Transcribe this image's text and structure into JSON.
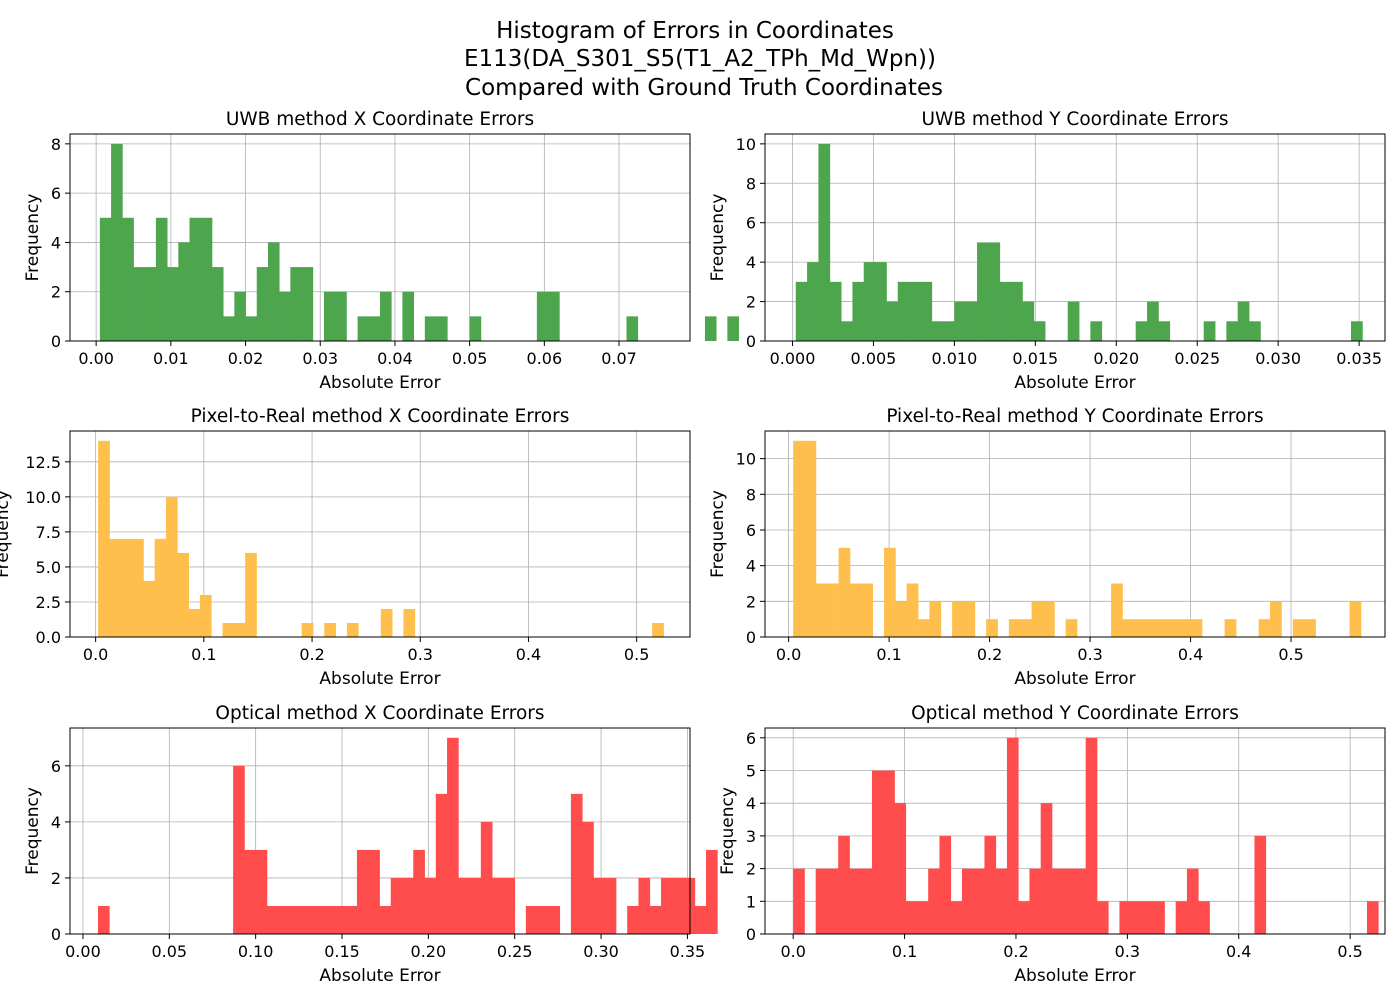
{
  "figure": {
    "title_lines": [
      "Histogram of Errors in Coordinates",
      "E113(DA_S301_S5(T1_A2_TPh_Md_Wpn))",
      "Compared with Ground Truth Coordinates"
    ]
  },
  "colors": {
    "uwb": "#4da64d",
    "pixel": "#ffbf4d",
    "optical": "#ff4d4d"
  },
  "chart_data": [
    {
      "type": "bar",
      "title": "UWB method X Coordinate Errors",
      "xlabel": "Absolute Error",
      "ylabel": "Frequency",
      "color": "#4da64d",
      "xlim": [
        -0.0035,
        0.0795
      ],
      "ylim": [
        0,
        8.4
      ],
      "xticks": [
        0.0,
        0.01,
        0.02,
        0.03,
        0.04,
        0.05,
        0.06,
        0.07
      ],
      "xtick_labels": [
        "0.00",
        "0.01",
        "0.02",
        "0.03",
        "0.04",
        "0.05",
        "0.06",
        "0.07"
      ],
      "yticks": [
        0,
        2,
        4,
        6,
        8
      ],
      "ytick_labels": [
        "0",
        "2",
        "4",
        "6",
        "8"
      ],
      "bin_start": 0.0005,
      "bin_width": 0.0015,
      "values": [
        5,
        8,
        5,
        3,
        3,
        5,
        3,
        4,
        5,
        5,
        3,
        1,
        2,
        1,
        3,
        4,
        2,
        3,
        3,
        0,
        2,
        2,
        0,
        1,
        1,
        2,
        0,
        2,
        0,
        1,
        1,
        0,
        0,
        1,
        0,
        0,
        0,
        0,
        0,
        2,
        2,
        0,
        0,
        0,
        0,
        0,
        0,
        1,
        0,
        0,
        0,
        0,
        0,
        0,
        1,
        0,
        1
      ]
    },
    {
      "type": "bar",
      "title": "UWB method Y Coordinate Errors",
      "xlabel": "Absolute Error",
      "ylabel": "Frequency",
      "color": "#4da64d",
      "xlim": [
        -0.0017,
        0.0366
      ],
      "ylim": [
        0,
        10.5
      ],
      "xticks": [
        0.0,
        0.005,
        0.01,
        0.015,
        0.02,
        0.025,
        0.03,
        0.035
      ],
      "xtick_labels": [
        "0.000",
        "0.005",
        "0.010",
        "0.015",
        "0.020",
        "0.025",
        "0.030",
        "0.035"
      ],
      "yticks": [
        0,
        2,
        4,
        6,
        8,
        10
      ],
      "ytick_labels": [
        "0",
        "2",
        "4",
        "6",
        "8",
        "10"
      ],
      "bin_start": 0.0002,
      "bin_width": 0.0007,
      "values": [
        3,
        4,
        10,
        3,
        1,
        3,
        4,
        4,
        2,
        3,
        3,
        3,
        1,
        1,
        2,
        2,
        5,
        5,
        3,
        3,
        2,
        1,
        0,
        0,
        2,
        0,
        1,
        0,
        0,
        0,
        1,
        2,
        1,
        0,
        0,
        0,
        1,
        0,
        1,
        2,
        1,
        0,
        0,
        0,
        0,
        0,
        0,
        0,
        0,
        1
      ]
    },
    {
      "type": "bar",
      "title": "Pixel-to-Real method X Coordinate Errors",
      "xlabel": "Absolute Error",
      "ylabel": "Frequency",
      "color": "#ffbf4d",
      "xlim": [
        -0.0237,
        0.5493
      ],
      "ylim": [
        0,
        14.7
      ],
      "xticks": [
        0.0,
        0.1,
        0.2,
        0.3,
        0.4,
        0.5
      ],
      "xtick_labels": [
        "0.0",
        "0.1",
        "0.2",
        "0.3",
        "0.4",
        "0.5"
      ],
      "yticks": [
        0,
        2.5,
        5.0,
        7.5,
        10.0,
        12.5
      ],
      "ytick_labels": [
        "0.0",
        "2.5",
        "5.0",
        "7.5",
        "10.0",
        "12.5"
      ],
      "bin_start": 0.0023,
      "bin_width": 0.01045,
      "values": [
        14,
        7,
        7,
        7,
        4,
        7,
        10,
        6,
        2,
        3,
        0,
        1,
        1,
        6,
        0,
        0,
        0,
        0,
        1,
        0,
        1,
        0,
        1,
        0,
        0,
        2,
        0,
        2,
        0,
        0,
        0,
        0,
        0,
        0,
        0,
        0,
        0,
        0,
        0,
        0,
        0,
        0,
        0,
        0,
        0,
        0,
        0,
        0,
        0,
        1
      ]
    },
    {
      "type": "bar",
      "title": "Pixel-to-Real method Y Coordinate Errors",
      "xlabel": "Absolute Error",
      "ylabel": "Frequency",
      "color": "#ffbf4d",
      "xlim": [
        -0.0235,
        0.5935
      ],
      "ylim": [
        0,
        11.55
      ],
      "xticks": [
        0.0,
        0.1,
        0.2,
        0.3,
        0.4,
        0.5
      ],
      "xtick_labels": [
        "0.0",
        "0.1",
        "0.2",
        "0.3",
        "0.4",
        "0.5"
      ],
      "yticks": [
        0,
        2,
        4,
        6,
        8,
        10
      ],
      "ytick_labels": [
        "0",
        "2",
        "4",
        "6",
        "8",
        "10"
      ],
      "bin_start": 0.0045,
      "bin_width": 0.0113,
      "values": [
        11,
        11,
        3,
        3,
        5,
        3,
        3,
        0,
        5,
        2,
        3,
        1,
        2,
        0,
        2,
        2,
        0,
        1,
        0,
        1,
        1,
        2,
        2,
        0,
        1,
        0,
        0,
        0,
        3,
        1,
        1,
        1,
        1,
        1,
        1,
        1,
        0,
        0,
        1,
        0,
        0,
        1,
        2,
        0,
        1,
        1,
        0,
        0,
        0,
        2
      ]
    },
    {
      "type": "bar",
      "title": "Optical method X Coordinate Errors",
      "xlabel": "Absolute Error",
      "ylabel": "Frequency",
      "color": "#ff4d4d",
      "xlim": [
        -0.0075,
        0.3515
      ],
      "ylim": [
        0,
        7.35
      ],
      "xticks": [
        0.0,
        0.05,
        0.1,
        0.15,
        0.2,
        0.25,
        0.3,
        0.35
      ],
      "xtick_labels": [
        "0.00",
        "0.05",
        "0.10",
        "0.15",
        "0.20",
        "0.25",
        "0.30",
        "0.35"
      ],
      "yticks": [
        0,
        2,
        4,
        6
      ],
      "ytick_labels": [
        "0",
        "2",
        "4",
        "6"
      ],
      "bin_start": 0.0087,
      "bin_width": 0.00652,
      "values": [
        1,
        0,
        0,
        0,
        0,
        0,
        0,
        0,
        0,
        0,
        0,
        0,
        6,
        3,
        3,
        1,
        1,
        1,
        1,
        1,
        1,
        1,
        1,
        3,
        3,
        1,
        2,
        2,
        3,
        2,
        5,
        7,
        2,
        2,
        4,
        2,
        2,
        0,
        1,
        1,
        1,
        0,
        5,
        4,
        2,
        2,
        0,
        1,
        2,
        1,
        2,
        2,
        2,
        1,
        3
      ]
    },
    {
      "type": "bar",
      "title": "Optical method Y Coordinate Errors",
      "xlabel": "Absolute Error",
      "ylabel": "Frequency",
      "color": "#ff4d4d",
      "xlim": [
        -0.0253,
        0.5313
      ],
      "ylim": [
        0,
        6.3
      ],
      "xticks": [
        0.0,
        0.1,
        0.2,
        0.3,
        0.4,
        0.5
      ],
      "xtick_labels": [
        "0.0",
        "0.1",
        "0.2",
        "0.3",
        "0.4",
        "0.5"
      ],
      "yticks": [
        0,
        1,
        2,
        3,
        4,
        5,
        6
      ],
      "ytick_labels": [
        "0",
        "1",
        "2",
        "3",
        "4",
        "5",
        "6"
      ],
      "bin_start": 0.0,
      "bin_width": 0.0101,
      "values": [
        2,
        0,
        2,
        2,
        3,
        2,
        2,
        5,
        5,
        4,
        1,
        1,
        2,
        3,
        1,
        2,
        2,
        3,
        2,
        6,
        1,
        2,
        4,
        2,
        2,
        2,
        6,
        1,
        0,
        1,
        1,
        1,
        1,
        0,
        1,
        2,
        1,
        0,
        0,
        0,
        0,
        3,
        0,
        0,
        0,
        0,
        0,
        0,
        0,
        0,
        0,
        1
      ]
    }
  ]
}
